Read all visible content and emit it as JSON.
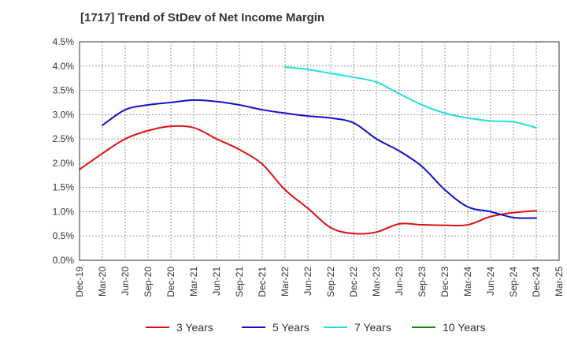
{
  "chart_data": {
    "type": "line",
    "title": "[1717]  Trend of StDev of Net Income Margin",
    "xlabel": "",
    "ylabel": "",
    "ylim": [
      0,
      4.5
    ],
    "y_ticks": [
      "0.0%",
      "0.5%",
      "1.0%",
      "1.5%",
      "2.0%",
      "2.5%",
      "3.0%",
      "3.5%",
      "4.0%",
      "4.5%"
    ],
    "x_ticks": [
      "Dec-19",
      "Mar-20",
      "Jun-20",
      "Sep-20",
      "Dec-20",
      "Mar-21",
      "Jun-21",
      "Sep-21",
      "Dec-21",
      "Mar-22",
      "Jun-22",
      "Sep-22",
      "Dec-22",
      "Mar-23",
      "Jun-23",
      "Sep-23",
      "Dec-23",
      "Mar-24",
      "Jun-24",
      "Sep-24",
      "Dec-24",
      "Mar-25"
    ],
    "grid": true,
    "legend_position": "bottom",
    "series": [
      {
        "name": "3 Years",
        "color": "#dd1111",
        "values": [
          1.87,
          2.2,
          2.5,
          2.67,
          2.76,
          2.73,
          2.5,
          2.28,
          1.98,
          1.45,
          1.07,
          0.67,
          0.55,
          0.58,
          0.75,
          0.73,
          0.72,
          0.73,
          0.9,
          0.98,
          1.02,
          null
        ]
      },
      {
        "name": "5 Years",
        "color": "#1111cc",
        "values": [
          null,
          2.78,
          3.1,
          3.2,
          3.25,
          3.3,
          3.27,
          3.2,
          3.1,
          3.03,
          2.97,
          2.93,
          2.83,
          2.5,
          2.25,
          1.93,
          1.45,
          1.1,
          1.0,
          0.88,
          0.87,
          null
        ]
      },
      {
        "name": "7 Years",
        "color": "#22dddd",
        "values": [
          null,
          null,
          null,
          null,
          null,
          null,
          null,
          null,
          null,
          3.98,
          3.93,
          3.85,
          3.77,
          3.67,
          3.43,
          3.2,
          3.03,
          2.93,
          2.87,
          2.85,
          2.73,
          null
        ]
      },
      {
        "name": "10 Years",
        "color": "#118811",
        "values": [
          null,
          null,
          null,
          null,
          null,
          null,
          null,
          null,
          null,
          null,
          null,
          null,
          null,
          null,
          null,
          null,
          null,
          null,
          null,
          null,
          null,
          null
        ]
      }
    ]
  }
}
